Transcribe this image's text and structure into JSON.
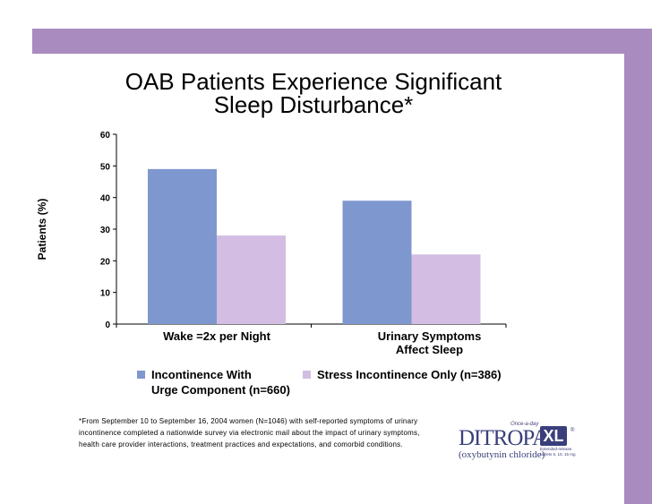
{
  "slide": {
    "title_line1": "OAB Patients Experience Significant",
    "title_line2": "Sleep Disturbance*",
    "footnote_lines": [
      "*From September 10 to September 16, 2004 women (N=1046) with self-reported symptoms of urinary",
      "incontinence completed a nationwide survey via electronic mail about the impact of urinary symptoms,",
      "health care provider interactions, treatment practices and expectations, and comorbid conditions."
    ],
    "logo": {
      "tagline": "Once-a-day",
      "brand": "DITROPAN",
      "brand_suffix": "XL",
      "registered": "®",
      "generic": "(oxybutynin chloride)",
      "subtext_lines": [
        "Extended-release",
        "tablets 5, 10, 15 mg"
      ]
    }
  },
  "colors": {
    "band": "#a98bbf",
    "series_urge": "#7f97cf",
    "series_stress": "#d3bde3"
  },
  "chart_data": {
    "type": "bar",
    "title": "OAB Patients Experience Significant Sleep Disturbance*",
    "xlabel": "",
    "ylabel": "Patients (%)",
    "ylim": [
      0,
      60
    ],
    "yticks": [
      0,
      10,
      20,
      30,
      40,
      50,
      60
    ],
    "grid": false,
    "legend_position": "bottom",
    "categories": [
      [
        "Wake =2x per Night"
      ],
      [
        "Urinary Symptoms",
        "Affect Sleep"
      ]
    ],
    "series": [
      {
        "name": [
          "Incontinence With",
          "Urge Component (n=660)"
        ],
        "values": [
          49,
          39
        ],
        "color": "#7f97cf"
      },
      {
        "name": [
          "Stress Incontinence Only (n=386)"
        ],
        "values": [
          28,
          22
        ],
        "color": "#d3bde3"
      }
    ]
  }
}
